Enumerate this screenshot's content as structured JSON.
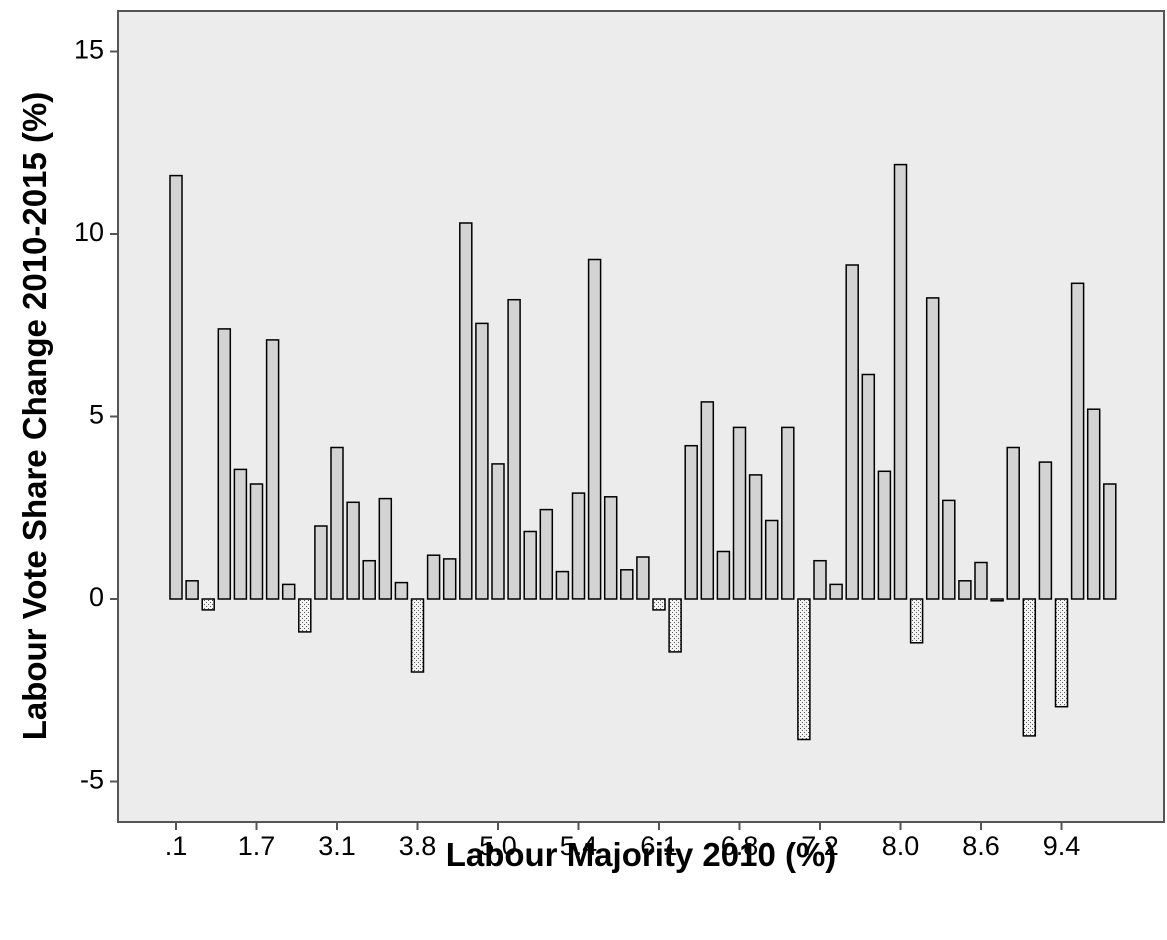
{
  "chart_data": {
    "type": "bar",
    "title": "",
    "xlabel": "Labour Majority 2010 (%)",
    "ylabel": "Labour Vote Share Change 2010-2015 (%)",
    "ylim": [
      -6,
      16
    ],
    "yticks": [
      -5,
      0,
      5,
      10,
      15
    ],
    "grid": false,
    "legend": "none",
    "x_tick_labels": [
      ".1",
      "1.7",
      "3.1",
      "3.8",
      "5.0",
      "5.4",
      "6.1",
      "6.8",
      "7.2",
      "8.0",
      "8.6",
      "9.4"
    ],
    "values": [
      11.6,
      0.5,
      -0.3,
      7.4,
      3.55,
      3.15,
      7.1,
      0.4,
      -0.9,
      2.0,
      4.15,
      2.65,
      1.05,
      2.75,
      0.45,
      -2.0,
      1.2,
      1.1,
      10.3,
      7.55,
      3.7,
      8.2,
      1.85,
      2.45,
      0.75,
      2.9,
      9.3,
      2.8,
      0.8,
      1.15,
      -0.3,
      -1.45,
      4.2,
      5.4,
      1.3,
      4.7,
      3.4,
      2.15,
      4.7,
      -3.85,
      1.05,
      0.4,
      9.15,
      6.15,
      3.5,
      11.9,
      -1.2,
      8.25,
      2.7,
      0.5,
      1.0,
      -0.05,
      4.15,
      -3.75,
      3.75,
      -2.95,
      8.65,
      5.2,
      3.15
    ],
    "colors": {
      "plot_background": "#ececec",
      "positive_fill": "#d3d3d3",
      "negative_fill": "#f4f4f4",
      "negative_dots": "#555555",
      "stroke": "#000000",
      "frame": "#555555"
    }
  }
}
